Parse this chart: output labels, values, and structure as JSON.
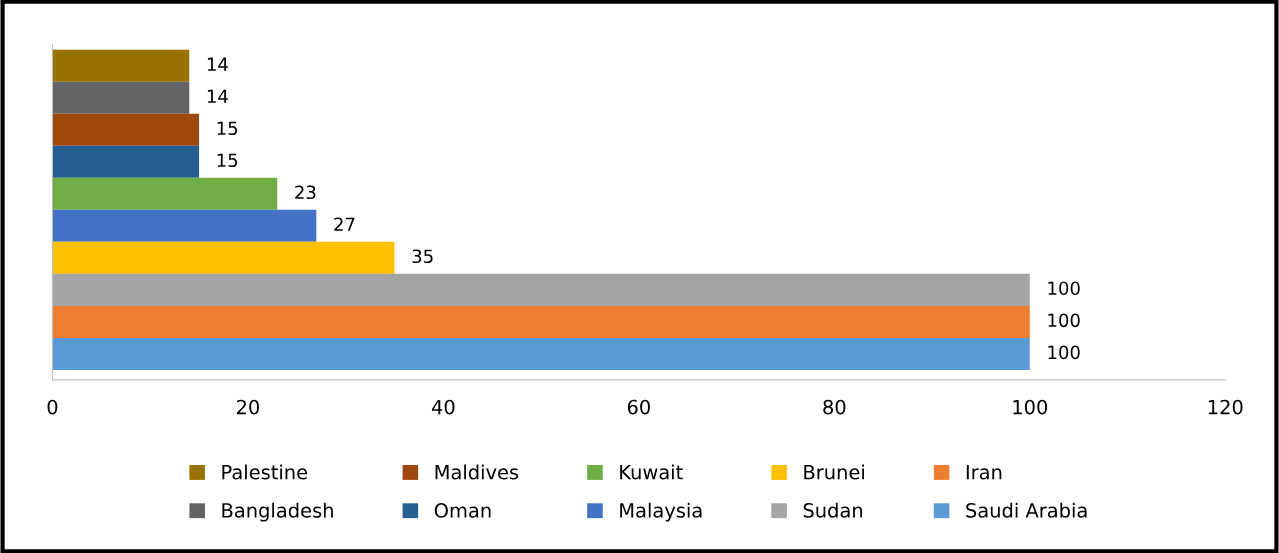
{
  "chart_data": {
    "type": "bar",
    "orientation": "horizontal",
    "categories": [
      null
    ],
    "series": [
      {
        "name": "Palestine",
        "color": "#997300",
        "values": [
          14
        ]
      },
      {
        "name": "Bangladesh",
        "color": "#636363",
        "values": [
          14
        ]
      },
      {
        "name": "Maldives",
        "color": "#9e480e",
        "values": [
          15
        ]
      },
      {
        "name": "Oman",
        "color": "#255e91",
        "values": [
          15
        ]
      },
      {
        "name": "Kuwait",
        "color": "#70ad47",
        "values": [
          23
        ]
      },
      {
        "name": "Malaysia",
        "color": "#4472c4",
        "values": [
          27
        ]
      },
      {
        "name": "Brunei",
        "color": "#ffc000",
        "values": [
          35
        ]
      },
      {
        "name": "Sudan",
        "color": "#a5a5a5",
        "values": [
          100
        ]
      },
      {
        "name": "Iran",
        "color": "#ed7d31",
        "values": [
          100
        ]
      },
      {
        "name": "Saudi Arabia",
        "color": "#5b9bd5",
        "values": [
          100
        ]
      }
    ],
    "xlim": [
      0,
      120
    ],
    "xticks": [
      0,
      20,
      40,
      60,
      80,
      100,
      120
    ],
    "data_labels": true,
    "grid": false,
    "legend": "bottom",
    "tick_labels": "x"
  }
}
